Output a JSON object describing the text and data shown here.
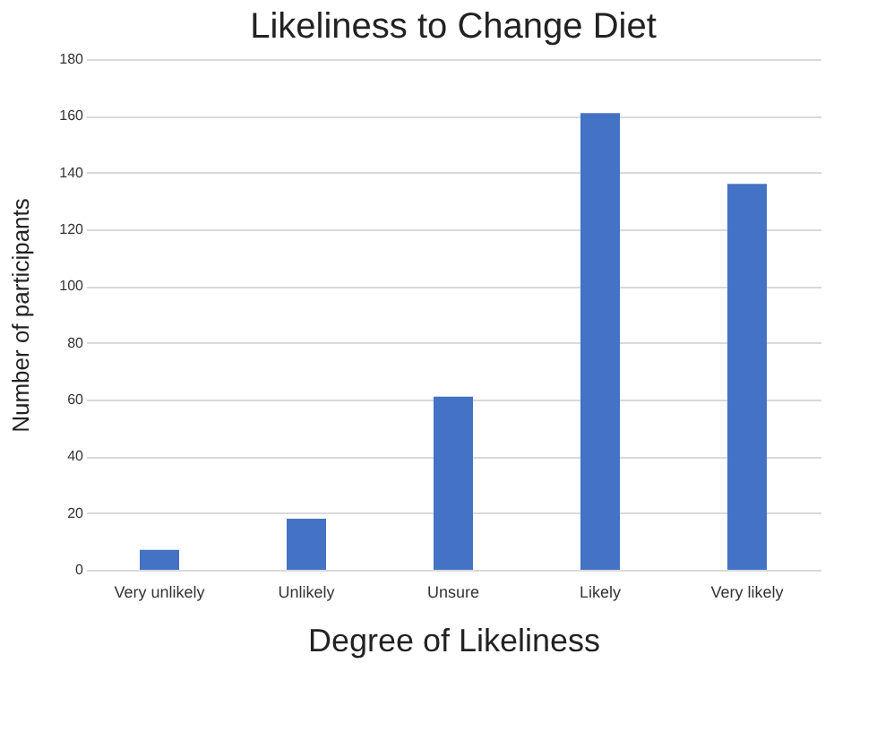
{
  "chart_data": {
    "type": "bar",
    "title": "Likeliness to Change Diet",
    "xlabel": "Degree of Likeliness",
    "ylabel": "Number of participants",
    "categories": [
      "Very unlikely",
      "Unlikely",
      "Unsure",
      "Likely",
      "Very likely"
    ],
    "values": [
      7,
      18,
      61,
      161,
      136
    ],
    "color": "#4472c4",
    "ylim": [
      0,
      180
    ],
    "yticks": [
      0,
      20,
      40,
      60,
      80,
      100,
      120,
      140,
      160,
      180
    ],
    "grid": "y"
  }
}
